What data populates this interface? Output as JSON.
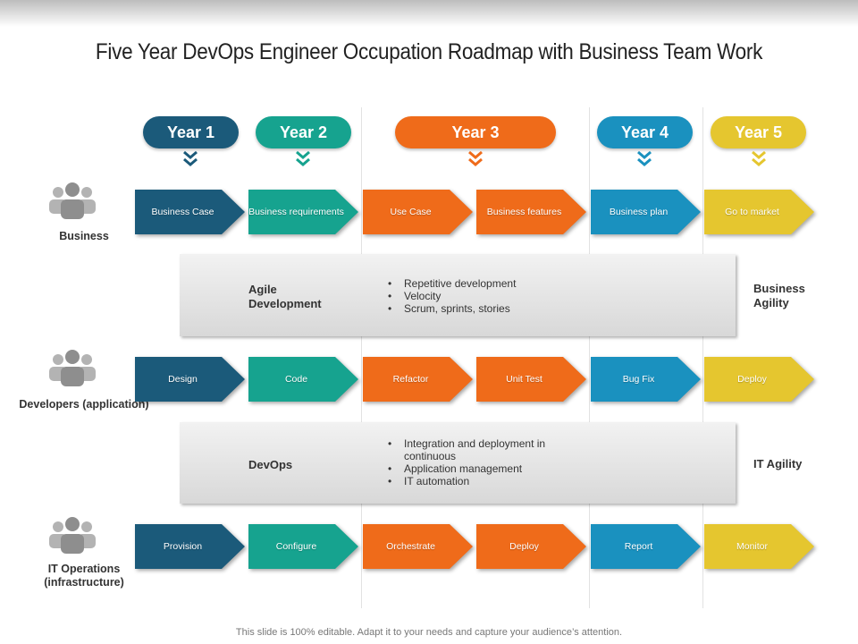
{
  "title": "Five Year DevOps Engineer Occupation Roadmap with Business Team Work",
  "years": [
    {
      "label": "Year 1",
      "color": "#1b5a7a"
    },
    {
      "label": "Year 2",
      "color": "#16a38f"
    },
    {
      "label": "Year 3",
      "color": "#ef6b1a"
    },
    {
      "label": "Year 4",
      "color": "#1a91bf"
    },
    {
      "label": "Year 5",
      "color": "#e5c62f"
    }
  ],
  "column_colors": [
    "#1b5a7a",
    "#16a38f",
    "#ef6b1a",
    "#ef6b1a",
    "#1a91bf",
    "#e5c62f"
  ],
  "rows": [
    {
      "label": "Business",
      "steps": [
        "Business Case",
        "Business requirements",
        "Use Case",
        "Business features",
        "Business plan",
        "Go to market"
      ]
    },
    {
      "label": "Developers (application)",
      "steps": [
        "Design",
        "Code",
        "Refactor",
        "Unit Test",
        "Bug Fix",
        "Deploy"
      ]
    },
    {
      "label": "IT Operations (infrastructure)",
      "steps": [
        "Provision",
        "Configure",
        "Orchestrate",
        "Deploy",
        "Report",
        "Monitor"
      ]
    }
  ],
  "bands": [
    {
      "title": "Agile Development",
      "bullets": [
        "Repetitive development",
        "Velocity",
        "Scrum, sprints, stories"
      ],
      "side_label": "Business Agility"
    },
    {
      "title": "DevOps",
      "bullets": [
        "Integration and deployment in continuous",
        "Application management",
        "IT automation"
      ],
      "side_label": "IT Agility"
    }
  ],
  "icon_name": "people-group-icon",
  "footer": "This slide is 100% editable. Adapt it to your needs and capture your audience’s attention."
}
